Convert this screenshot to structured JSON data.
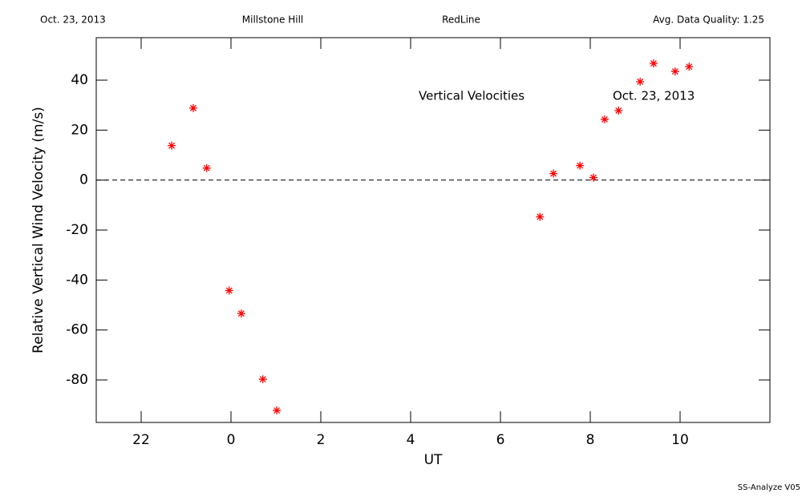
{
  "header": {
    "date": "Oct. 23, 2013",
    "site": "Millstone Hill",
    "instrument": "RedLine",
    "quality": "Avg. Data Quality: 1.25"
  },
  "footer": "SS-Analyze V05",
  "chart_data": {
    "type": "scatter",
    "annotations": [
      "Vertical Velocities",
      "Oct. 23, 2013"
    ],
    "xlabel": "UT",
    "ylabel": "Relative Vertical Wind Velocity (m/s)",
    "x": [
      -1.32,
      -0.84,
      -0.54,
      -0.04,
      0.23,
      0.71,
      1.02,
      6.88,
      7.18,
      7.77,
      8.07,
      8.32,
      8.63,
      9.11,
      9.41,
      9.89,
      10.2
    ],
    "values": [
      13.8,
      28.8,
      4.8,
      -44.2,
      -53.4,
      -79.7,
      -92.2,
      -14.7,
      2.6,
      5.8,
      1.0,
      24.3,
      27.8,
      39.4,
      46.7,
      43.5,
      45.4
    ],
    "color": "#ff0000",
    "xlim": [
      -3,
      12
    ],
    "xticks": [
      {
        "value": -2,
        "label": "22"
      },
      0,
      2,
      4,
      6,
      8,
      10
    ],
    "ylim": [
      -97,
      57
    ],
    "yticks": [
      -80,
      -60,
      -40,
      -20,
      0,
      20,
      40
    ],
    "hline": 0
  }
}
